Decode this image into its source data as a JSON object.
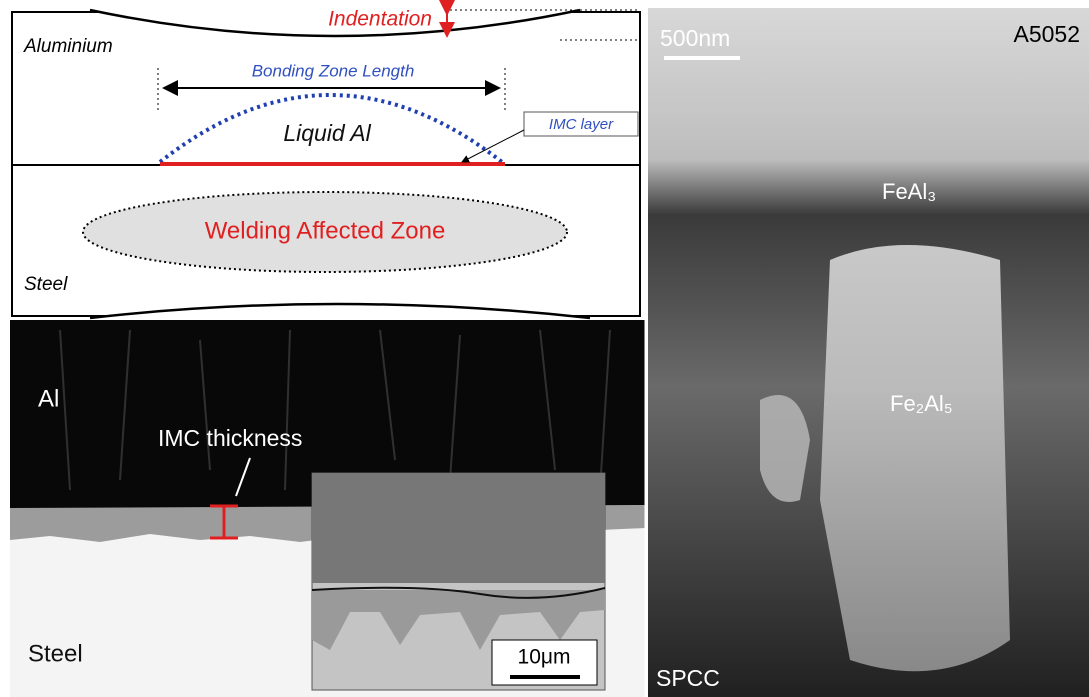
{
  "schematic": {
    "indentation": "Indentation",
    "aluminium": "Aluminium",
    "bonding_zone_length": "Bonding Zone Length",
    "liquid_al": "Liquid Al",
    "imc_layer": "IMC layer",
    "welding_affected_zone": "Welding Affected Zone",
    "steel": "Steel"
  },
  "sem_image": {
    "al": "Al",
    "imc_thickness": "IMC thickness",
    "steel": "Steel",
    "scale_bar": "10μm"
  },
  "tem_image": {
    "scale_bar": "500nm",
    "top_material": "A5052",
    "phase_1": "FeAl₃",
    "phase_2": "Fe₂Al₅",
    "bottom_material": "SPCC"
  }
}
